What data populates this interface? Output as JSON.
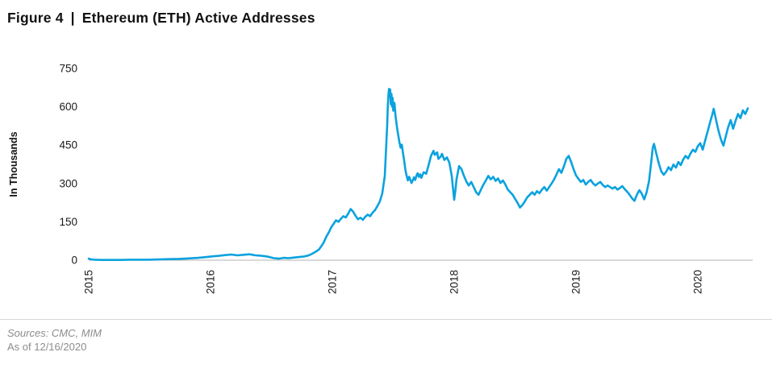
{
  "header": {
    "figure_label": "Figure 4",
    "separator": "|",
    "title": "Ethereum (ETH) Active Addresses"
  },
  "footer": {
    "sources": "Sources: CMC, MIM",
    "as_of": "As of 12/16/2020"
  },
  "chart_data": {
    "type": "line",
    "title": "Ethereum (ETH) Active Addresses",
    "xlabel": "",
    "ylabel": "In Thousands",
    "units": "thousands of addresses",
    "grid": false,
    "legend": false,
    "line_color": "#0aa2de",
    "axis_line_color": "#b0b0b0",
    "text_color": "#1a1a1a",
    "x_ticks": [
      "2015",
      "2016",
      "2017",
      "2018",
      "2019",
      "2020"
    ],
    "x_tick_values": [
      2015,
      2016,
      2017,
      2018,
      2019,
      2020
    ],
    "y_ticks": [
      0,
      150,
      300,
      450,
      600,
      750
    ],
    "x_range": [
      2015.0,
      2020.45
    ],
    "y_range": [
      0,
      750
    ],
    "series": [
      {
        "name": "ETH Active Addresses",
        "points": [
          [
            2015.0,
            6
          ],
          [
            2015.02,
            3
          ],
          [
            2015.05,
            2
          ],
          [
            2015.1,
            1
          ],
          [
            2015.18,
            1
          ],
          [
            2015.26,
            1
          ],
          [
            2015.34,
            2
          ],
          [
            2015.42,
            2
          ],
          [
            2015.5,
            2
          ],
          [
            2015.58,
            3
          ],
          [
            2015.66,
            4
          ],
          [
            2015.74,
            5
          ],
          [
            2015.82,
            7
          ],
          [
            2015.9,
            9
          ],
          [
            2015.96,
            12
          ],
          [
            2016.02,
            15
          ],
          [
            2016.07,
            17
          ],
          [
            2016.12,
            20
          ],
          [
            2016.17,
            22
          ],
          [
            2016.22,
            19
          ],
          [
            2016.27,
            21
          ],
          [
            2016.32,
            23
          ],
          [
            2016.37,
            19
          ],
          [
            2016.42,
            17
          ],
          [
            2016.47,
            14
          ],
          [
            2016.52,
            8
          ],
          [
            2016.56,
            6
          ],
          [
            2016.6,
            9
          ],
          [
            2016.64,
            8
          ],
          [
            2016.68,
            10
          ],
          [
            2016.72,
            12
          ],
          [
            2016.76,
            14
          ],
          [
            2016.8,
            18
          ],
          [
            2016.83,
            24
          ],
          [
            2016.86,
            32
          ],
          [
            2016.89,
            42
          ],
          [
            2016.91,
            55
          ],
          [
            2016.93,
            70
          ],
          [
            2016.95,
            92
          ],
          [
            2016.97,
            108
          ],
          [
            2016.99,
            128
          ],
          [
            2017.01,
            142
          ],
          [
            2017.03,
            156
          ],
          [
            2017.05,
            150
          ],
          [
            2017.07,
            162
          ],
          [
            2017.09,
            172
          ],
          [
            2017.11,
            167
          ],
          [
            2017.13,
            182
          ],
          [
            2017.15,
            200
          ],
          [
            2017.17,
            190
          ],
          [
            2017.19,
            174
          ],
          [
            2017.21,
            160
          ],
          [
            2017.23,
            166
          ],
          [
            2017.25,
            158
          ],
          [
            2017.27,
            170
          ],
          [
            2017.29,
            178
          ],
          [
            2017.31,
            172
          ],
          [
            2017.33,
            186
          ],
          [
            2017.35,
            196
          ],
          [
            2017.37,
            212
          ],
          [
            2017.39,
            230
          ],
          [
            2017.41,
            262
          ],
          [
            2017.43,
            330
          ],
          [
            2017.44,
            430
          ],
          [
            2017.45,
            530
          ],
          [
            2017.455,
            600
          ],
          [
            2017.46,
            645
          ],
          [
            2017.465,
            670
          ],
          [
            2017.47,
            640
          ],
          [
            2017.475,
            668
          ],
          [
            2017.48,
            610
          ],
          [
            2017.485,
            650
          ],
          [
            2017.49,
            600
          ],
          [
            2017.495,
            635
          ],
          [
            2017.5,
            585
          ],
          [
            2017.51,
            615
          ],
          [
            2017.52,
            560
          ],
          [
            2017.53,
            520
          ],
          [
            2017.54,
            490
          ],
          [
            2017.55,
            462
          ],
          [
            2017.56,
            440
          ],
          [
            2017.57,
            452
          ],
          [
            2017.58,
            418
          ],
          [
            2017.59,
            388
          ],
          [
            2017.6,
            352
          ],
          [
            2017.61,
            330
          ],
          [
            2017.62,
            312
          ],
          [
            2017.63,
            326
          ],
          [
            2017.64,
            314
          ],
          [
            2017.65,
            302
          ],
          [
            2017.66,
            312
          ],
          [
            2017.67,
            324
          ],
          [
            2017.68,
            314
          ],
          [
            2017.69,
            330
          ],
          [
            2017.7,
            340
          ],
          [
            2017.71,
            326
          ],
          [
            2017.72,
            336
          ],
          [
            2017.73,
            322
          ],
          [
            2017.74,
            334
          ],
          [
            2017.75,
            344
          ],
          [
            2017.77,
            338
          ],
          [
            2017.79,
            372
          ],
          [
            2017.81,
            408
          ],
          [
            2017.83,
            428
          ],
          [
            2017.84,
            412
          ],
          [
            2017.86,
            422
          ],
          [
            2017.87,
            396
          ],
          [
            2017.89,
            406
          ],
          [
            2017.9,
            416
          ],
          [
            2017.92,
            392
          ],
          [
            2017.94,
            402
          ],
          [
            2017.96,
            382
          ],
          [
            2017.98,
            330
          ],
          [
            2018.0,
            236
          ],
          [
            2018.01,
            272
          ],
          [
            2018.02,
            318
          ],
          [
            2018.04,
            368
          ],
          [
            2018.06,
            356
          ],
          [
            2018.08,
            330
          ],
          [
            2018.1,
            308
          ],
          [
            2018.12,
            292
          ],
          [
            2018.14,
            306
          ],
          [
            2018.16,
            286
          ],
          [
            2018.18,
            266
          ],
          [
            2018.2,
            256
          ],
          [
            2018.22,
            276
          ],
          [
            2018.24,
            296
          ],
          [
            2018.26,
            312
          ],
          [
            2018.28,
            330
          ],
          [
            2018.3,
            316
          ],
          [
            2018.32,
            326
          ],
          [
            2018.34,
            310
          ],
          [
            2018.36,
            320
          ],
          [
            2018.38,
            302
          ],
          [
            2018.4,
            312
          ],
          [
            2018.42,
            296
          ],
          [
            2018.44,
            276
          ],
          [
            2018.46,
            266
          ],
          [
            2018.48,
            256
          ],
          [
            2018.5,
            240
          ],
          [
            2018.52,
            224
          ],
          [
            2018.54,
            206
          ],
          [
            2018.56,
            216
          ],
          [
            2018.58,
            230
          ],
          [
            2018.6,
            246
          ],
          [
            2018.62,
            256
          ],
          [
            2018.64,
            266
          ],
          [
            2018.66,
            256
          ],
          [
            2018.68,
            270
          ],
          [
            2018.7,
            262
          ],
          [
            2018.72,
            276
          ],
          [
            2018.74,
            286
          ],
          [
            2018.76,
            272
          ],
          [
            2018.78,
            286
          ],
          [
            2018.8,
            300
          ],
          [
            2018.82,
            316
          ],
          [
            2018.84,
            336
          ],
          [
            2018.86,
            356
          ],
          [
            2018.88,
            342
          ],
          [
            2018.9,
            366
          ],
          [
            2018.92,
            396
          ],
          [
            2018.94,
            408
          ],
          [
            2018.96,
            384
          ],
          [
            2018.98,
            356
          ],
          [
            2019.0,
            332
          ],
          [
            2019.02,
            318
          ],
          [
            2019.04,
            306
          ],
          [
            2019.06,
            314
          ],
          [
            2019.08,
            296
          ],
          [
            2019.1,
            306
          ],
          [
            2019.12,
            314
          ],
          [
            2019.14,
            300
          ],
          [
            2019.16,
            292
          ],
          [
            2019.18,
            300
          ],
          [
            2019.2,
            306
          ],
          [
            2019.22,
            294
          ],
          [
            2019.24,
            286
          ],
          [
            2019.26,
            292
          ],
          [
            2019.28,
            286
          ],
          [
            2019.3,
            280
          ],
          [
            2019.32,
            286
          ],
          [
            2019.34,
            276
          ],
          [
            2019.36,
            282
          ],
          [
            2019.38,
            290
          ],
          [
            2019.4,
            278
          ],
          [
            2019.42,
            268
          ],
          [
            2019.44,
            256
          ],
          [
            2019.46,
            242
          ],
          [
            2019.48,
            232
          ],
          [
            2019.5,
            256
          ],
          [
            2019.52,
            274
          ],
          [
            2019.54,
            260
          ],
          [
            2019.56,
            238
          ],
          [
            2019.58,
            266
          ],
          [
            2019.6,
            310
          ],
          [
            2019.62,
            396
          ],
          [
            2019.63,
            440
          ],
          [
            2019.64,
            455
          ],
          [
            2019.66,
            416
          ],
          [
            2019.68,
            378
          ],
          [
            2019.7,
            348
          ],
          [
            2019.72,
            334
          ],
          [
            2019.74,
            346
          ],
          [
            2019.76,
            364
          ],
          [
            2019.78,
            352
          ],
          [
            2019.8,
            374
          ],
          [
            2019.82,
            362
          ],
          [
            2019.84,
            384
          ],
          [
            2019.86,
            372
          ],
          [
            2019.88,
            394
          ],
          [
            2019.9,
            408
          ],
          [
            2019.92,
            398
          ],
          [
            2019.94,
            418
          ],
          [
            2019.96,
            432
          ],
          [
            2019.98,
            424
          ],
          [
            2020.0,
            446
          ],
          [
            2020.02,
            458
          ],
          [
            2020.04,
            432
          ],
          [
            2020.06,
            468
          ],
          [
            2020.08,
            502
          ],
          [
            2020.1,
            538
          ],
          [
            2020.12,
            572
          ],
          [
            2020.13,
            592
          ],
          [
            2020.15,
            548
          ],
          [
            2020.17,
            506
          ],
          [
            2020.19,
            472
          ],
          [
            2020.21,
            448
          ],
          [
            2020.23,
            486
          ],
          [
            2020.25,
            522
          ],
          [
            2020.27,
            548
          ],
          [
            2020.29,
            514
          ],
          [
            2020.31,
            546
          ],
          [
            2020.33,
            572
          ],
          [
            2020.35,
            556
          ],
          [
            2020.37,
            586
          ],
          [
            2020.39,
            572
          ],
          [
            2020.41,
            594
          ]
        ]
      }
    ]
  }
}
